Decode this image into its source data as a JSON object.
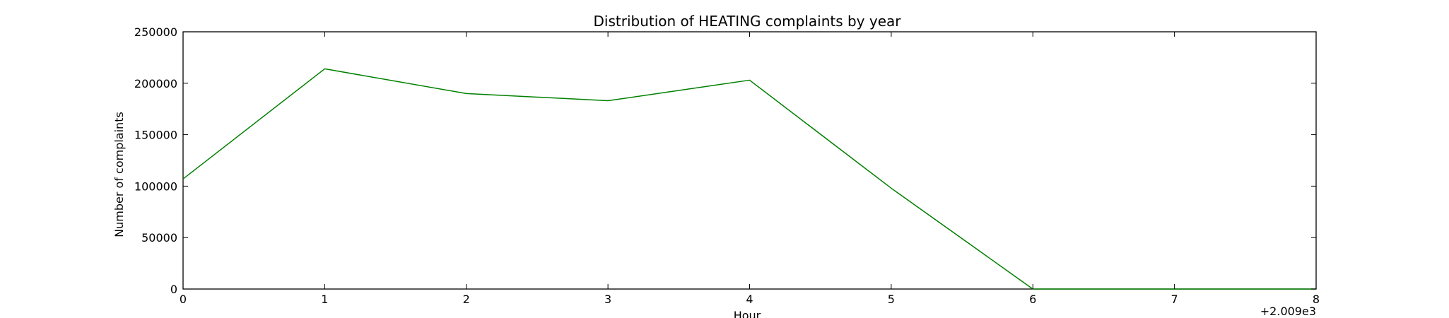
{
  "chart_data": {
    "type": "line",
    "title": "Distribution of  HEATING complaints by year",
    "xlabel": "Hour",
    "ylabel": "Number of complaints",
    "x_offset_label": "+2.009e3",
    "x_tick_labels": [
      "0",
      "1",
      "2",
      "3",
      "4",
      "5",
      "6",
      "7",
      "8"
    ],
    "y_tick_labels": [
      "0",
      "50000",
      "100000",
      "150000",
      "200000",
      "250000"
    ],
    "xlim": [
      0,
      8
    ],
    "ylim": [
      0,
      250000
    ],
    "grid": false,
    "legend": "none",
    "series": [
      {
        "color": "#008000",
        "x": [
          0,
          1,
          2,
          3,
          4,
          5,
          6,
          7,
          8
        ],
        "y": [
          107000,
          214000,
          190000,
          183000,
          203000,
          98000,
          0,
          0,
          0
        ]
      }
    ]
  }
}
